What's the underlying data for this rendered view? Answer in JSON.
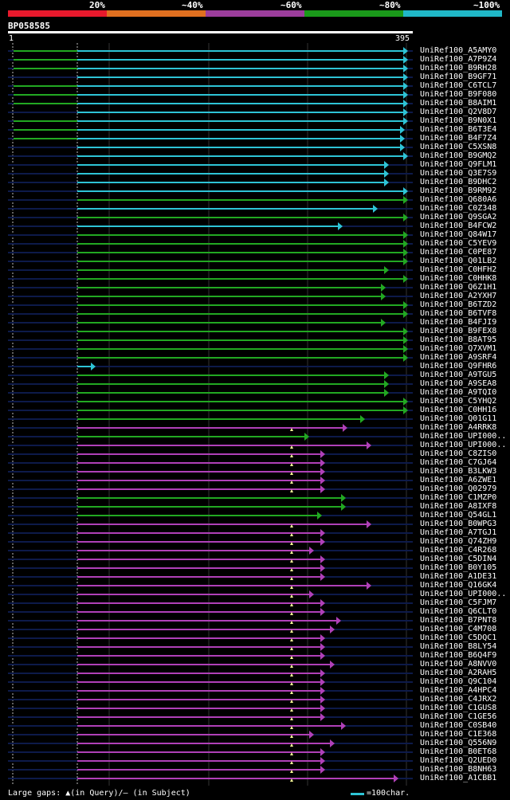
{
  "legend": {
    "labels": [
      "20%",
      "~40%",
      "~60%",
      "~80%",
      "~100%"
    ],
    "colors": [
      "#e8192c",
      "#e07020",
      "#9c3d9c",
      "#1a9a1a",
      "#20b8c8"
    ]
  },
  "title": "BP058585",
  "ruler": {
    "start": "1",
    "end": "395"
  },
  "rows": [
    {
      "n": "UniRef100_A5AMY0",
      "c": "cyan"
    },
    {
      "n": "UniRef100_A7P9Z4",
      "c": "cyan"
    },
    {
      "n": "UniRef100_B9RH28",
      "c": "cyan"
    },
    {
      "n": "UniRef100_B9GF71",
      "c": "cyan"
    },
    {
      "n": "UniRef100_C6TCL7",
      "c": "cyan"
    },
    {
      "n": "UniRef100_B9F080",
      "c": "cyan"
    },
    {
      "n": "UniRef100_B8AIM1",
      "c": "cyan"
    },
    {
      "n": "UniRef100_Q2V8D7",
      "c": "cyan"
    },
    {
      "n": "UniRef100_B9N0X1",
      "c": "cyan"
    },
    {
      "n": "UniRef100_B6T3E4",
      "c": "cyan"
    },
    {
      "n": "UniRef100_B4F7Z4",
      "c": "cyan"
    },
    {
      "n": "UniRef100_C5XSN8",
      "c": "cyan"
    },
    {
      "n": "UniRef100_B9GMQ2",
      "c": "cyan"
    },
    {
      "n": "UniRef100_Q9FLM1",
      "c": "cyan"
    },
    {
      "n": "UniRef100_Q3E7S9",
      "c": "cyan"
    },
    {
      "n": "UniRef100_B9DHC2",
      "c": "cyan"
    },
    {
      "n": "UniRef100_B9RM92",
      "c": "cyan"
    },
    {
      "n": "UniRef100_Q680A6",
      "c": "green"
    },
    {
      "n": "UniRef100_C0Z348",
      "c": "cyan"
    },
    {
      "n": "UniRef100_Q9SGA2",
      "c": "green"
    },
    {
      "n": "UniRef100_B4FCW2",
      "c": "cyan"
    },
    {
      "n": "UniRef100_Q84W17",
      "c": "green"
    },
    {
      "n": "UniRef100_C5YEV9",
      "c": "green"
    },
    {
      "n": "UniRef100_C0PE87",
      "c": "green"
    },
    {
      "n": "UniRef100_Q01LB2",
      "c": "green"
    },
    {
      "n": "UniRef100_C0HFH2",
      "c": "green"
    },
    {
      "n": "UniRef100_C0HHK8",
      "c": "green"
    },
    {
      "n": "UniRef100_Q6Z1H1",
      "c": "green"
    },
    {
      "n": "UniRef100_A2YXH7",
      "c": "green"
    },
    {
      "n": "UniRef100_B6TZD2",
      "c": "green"
    },
    {
      "n": "UniRef100_B6TVF8",
      "c": "green"
    },
    {
      "n": "UniRef100_B4FJI9",
      "c": "green"
    },
    {
      "n": "UniRef100_B9FEX8",
      "c": "green"
    },
    {
      "n": "UniRef100_B8AT95",
      "c": "green"
    },
    {
      "n": "UniRef100_Q7XVM1",
      "c": "green"
    },
    {
      "n": "UniRef100_A9SRF4",
      "c": "green"
    },
    {
      "n": "UniRef100_Q9FHR6",
      "c": "cyan"
    },
    {
      "n": "UniRef100_A9TGU5",
      "c": "green"
    },
    {
      "n": "UniRef100_A9SEA8",
      "c": "green"
    },
    {
      "n": "UniRef100_A9TQI0",
      "c": "green"
    },
    {
      "n": "UniRef100_C5YHQ2",
      "c": "green"
    },
    {
      "n": "UniRef100_C0HH16",
      "c": "green"
    },
    {
      "n": "UniRef100_Q01G11",
      "c": "green"
    },
    {
      "n": "UniRef100_A4RRK8",
      "c": "magenta"
    },
    {
      "n": "UniRef100_UPI000..",
      "c": "green"
    },
    {
      "n": "UniRef100_UPI000..",
      "c": "magenta"
    },
    {
      "n": "UniRef100_C8ZIS0",
      "c": "magenta"
    },
    {
      "n": "UniRef100_C7GJ64",
      "c": "magenta"
    },
    {
      "n": "UniRef100_B3LKW3",
      "c": "magenta"
    },
    {
      "n": "UniRef100_A6ZWE1",
      "c": "magenta"
    },
    {
      "n": "UniRef100_Q02979",
      "c": "magenta"
    },
    {
      "n": "UniRef100_C1MZP0",
      "c": "green"
    },
    {
      "n": "UniRef100_A8IXF8",
      "c": "green"
    },
    {
      "n": "UniRef100_Q54GL1",
      "c": "green"
    },
    {
      "n": "UniRef100_B0WPG3",
      "c": "magenta"
    },
    {
      "n": "UniRef100_A7TGJ1",
      "c": "magenta"
    },
    {
      "n": "UniRef100_Q74ZH9",
      "c": "magenta"
    },
    {
      "n": "UniRef100_C4R268",
      "c": "magenta"
    },
    {
      "n": "UniRef100_C5DIN4",
      "c": "magenta"
    },
    {
      "n": "UniRef100_B0Y105",
      "c": "magenta"
    },
    {
      "n": "UniRef100_A1DE31",
      "c": "magenta"
    },
    {
      "n": "UniRef100_Q16GK4",
      "c": "magenta"
    },
    {
      "n": "UniRef100_UPI000..",
      "c": "magenta"
    },
    {
      "n": "UniRef100_C5FJM7",
      "c": "magenta"
    },
    {
      "n": "UniRef100_Q6CLT0",
      "c": "magenta"
    },
    {
      "n": "UniRef100_B7PNT8",
      "c": "magenta"
    },
    {
      "n": "UniRef100_C4M708",
      "c": "magenta"
    },
    {
      "n": "UniRef100_C5DQC1",
      "c": "magenta"
    },
    {
      "n": "UniRef100_B8LY54",
      "c": "magenta"
    },
    {
      "n": "UniRef100_B6Q4F9",
      "c": "magenta"
    },
    {
      "n": "UniRef100_A8NVV0",
      "c": "magenta"
    },
    {
      "n": "UniRef100_A2RAH5",
      "c": "magenta"
    },
    {
      "n": "UniRef100_Q9C104",
      "c": "magenta"
    },
    {
      "n": "UniRef100_A4HPC4",
      "c": "magenta"
    },
    {
      "n": "UniRef100_C4JRX2",
      "c": "magenta"
    },
    {
      "n": "UniRef100_C1GUS8",
      "c": "magenta"
    },
    {
      "n": "UniRef100_C1GE56",
      "c": "magenta"
    },
    {
      "n": "UniRef100_C0SB40",
      "c": "magenta"
    },
    {
      "n": "UniRef100_C1E368",
      "c": "magenta"
    },
    {
      "n": "UniRef100_Q556N9",
      "c": "magenta"
    },
    {
      "n": "UniRef100_B0ET68",
      "c": "magenta"
    },
    {
      "n": "UniRef100_Q2UED0",
      "c": "magenta"
    },
    {
      "n": "UniRef100_B8NH63",
      "c": "magenta"
    },
    {
      "n": "UniRef100_A1CBB1",
      "c": "magenta"
    }
  ],
  "footer": "Large gaps: ▲(in Query)/— (in Subject)",
  "scale_label": "=100char."
}
